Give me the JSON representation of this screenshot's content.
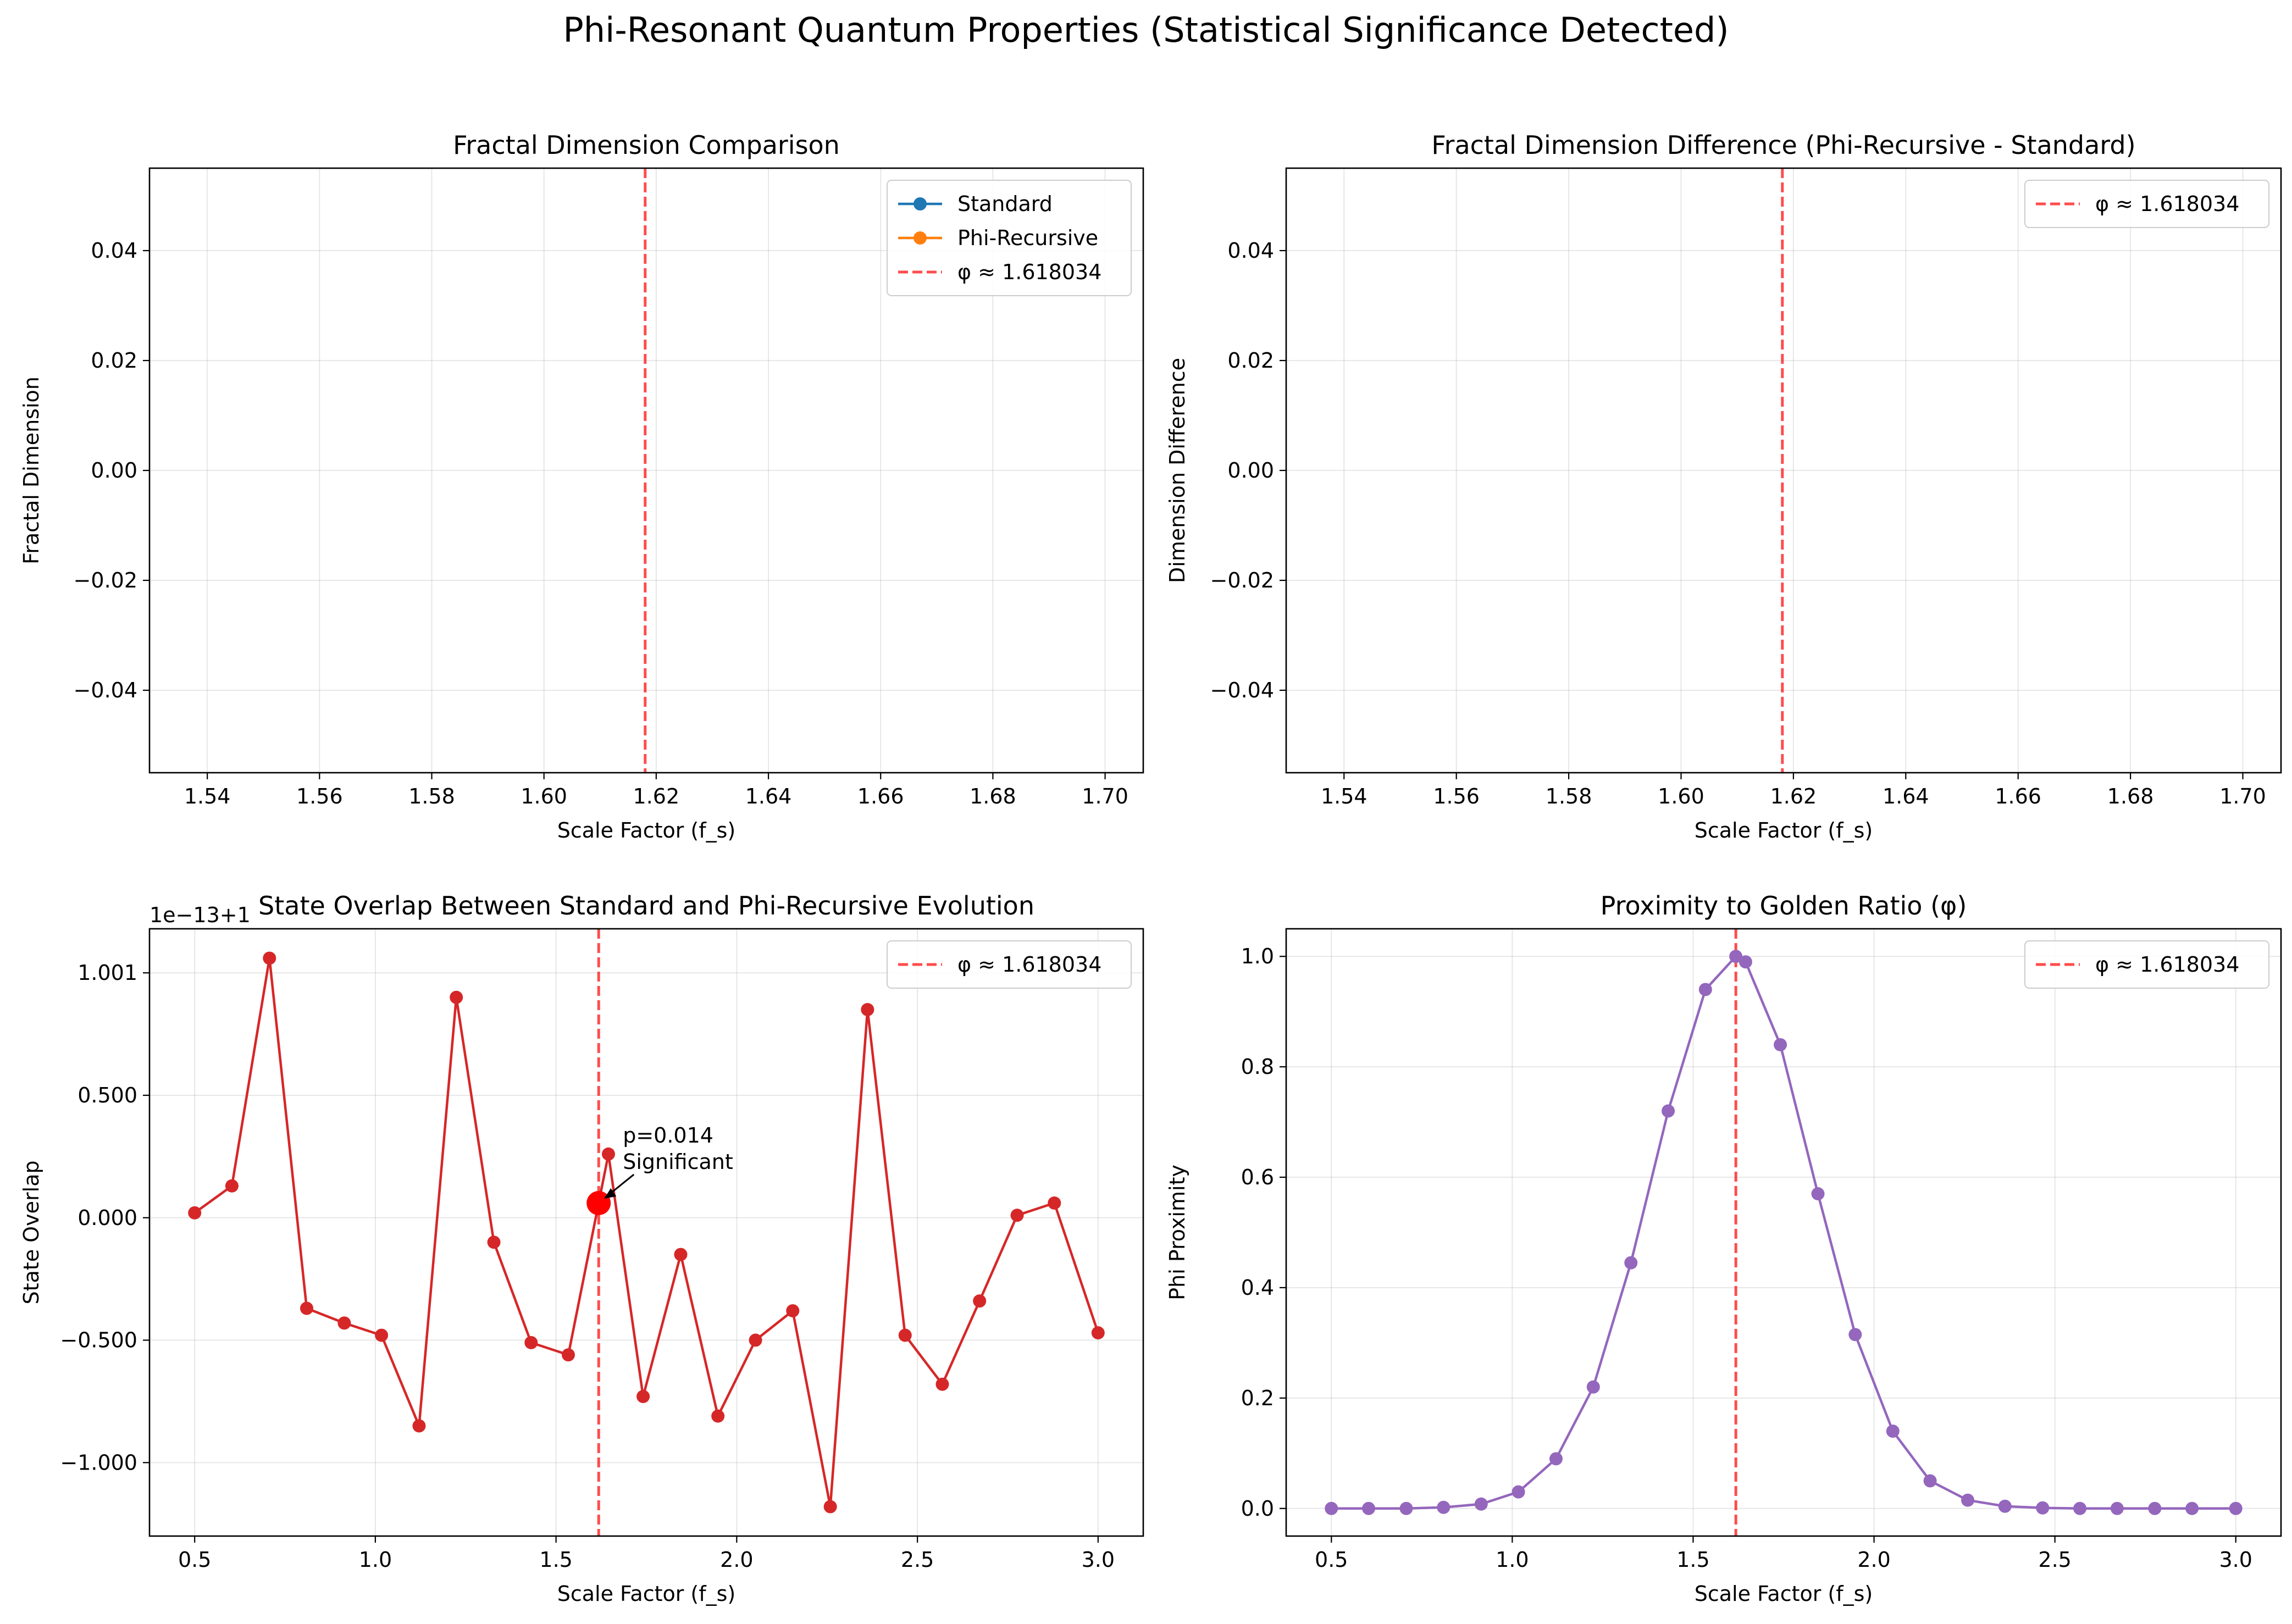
{
  "figure": {
    "suptitle": "Phi-Resonant Quantum Properties (Statistical Significance Detected)"
  },
  "colors": {
    "standard": "#1f77b4",
    "phi_recursive": "#ff7f0e",
    "phi_line": "#ff0000",
    "overlap": "#d62728",
    "proximity": "#9467bd",
    "grid": "#b0b0b0"
  },
  "chart_data": [
    {
      "id": "fractal_dimension",
      "type": "line",
      "title": "Fractal Dimension Comparison",
      "xlabel": "Scale Factor (f_s)",
      "ylabel": "Fractal Dimension",
      "xlim": [
        1.5297,
        1.7068
      ],
      "ylim": [
        -0.055,
        0.055
      ],
      "xticks": [
        1.54,
        1.56,
        1.58,
        1.6,
        1.62,
        1.64,
        1.66,
        1.68,
        1.7
      ],
      "xtick_labels": [
        "1.54",
        "1.56",
        "1.58",
        "1.60",
        "1.62",
        "1.64",
        "1.66",
        "1.68",
        "1.70"
      ],
      "yticks": [
        -0.04,
        -0.02,
        0.0,
        0.02,
        0.04
      ],
      "ytick_labels": [
        "−0.04",
        "−0.02",
        "0.00",
        "0.02",
        "0.04"
      ],
      "grid": true,
      "legend_position": "top-right",
      "series": [
        {
          "name": "Standard",
          "x": [],
          "y": [],
          "color": "#1f77b4"
        },
        {
          "name": "Phi-Recursive",
          "x": [],
          "y": [],
          "color": "#ff7f0e"
        }
      ],
      "vline": {
        "x": 1.618034,
        "label": "φ ≈ 1.618034"
      }
    },
    {
      "id": "dimension_difference",
      "type": "line",
      "title": "Fractal Dimension Difference (Phi-Recursive - Standard)",
      "xlabel": "Scale Factor (f_s)",
      "ylabel": "Dimension Difference",
      "xlim": [
        1.5297,
        1.7068
      ],
      "ylim": [
        -0.055,
        0.055
      ],
      "xticks": [
        1.54,
        1.56,
        1.58,
        1.6,
        1.62,
        1.64,
        1.66,
        1.68,
        1.7
      ],
      "xtick_labels": [
        "1.54",
        "1.56",
        "1.58",
        "1.60",
        "1.62",
        "1.64",
        "1.66",
        "1.68",
        "1.70"
      ],
      "yticks": [
        -0.04,
        -0.02,
        0.0,
        0.02,
        0.04
      ],
      "ytick_labels": [
        "−0.04",
        "−0.02",
        "0.00",
        "0.02",
        "0.04"
      ],
      "grid": true,
      "legend_position": "top-right",
      "series": [],
      "vline": {
        "x": 1.618034,
        "label": "φ ≈ 1.618034"
      }
    },
    {
      "id": "state_overlap",
      "type": "line",
      "title": "State Overlap Between Standard and Phi-Recursive Evolution",
      "xlabel": "Scale Factor (f_s)",
      "ylabel": "State Overlap",
      "offset_text": "1e−13+1",
      "xlim": [
        0.375,
        3.125
      ],
      "ylim": [
        -1.3,
        1.18
      ],
      "xticks": [
        0.5,
        1.0,
        1.5,
        2.0,
        2.5,
        3.0
      ],
      "xtick_labels": [
        "0.5",
        "1.0",
        "1.5",
        "2.0",
        "2.5",
        "3.0"
      ],
      "yticks": [
        -1.0,
        -0.5,
        0.0,
        0.5,
        1.0
      ],
      "ytick_labels": [
        "−1.000",
        "−0.500",
        "0.000",
        "0.500",
        "1.001"
      ],
      "grid": true,
      "legend_position": "top-right",
      "series": [
        {
          "name": "",
          "color": "#d62728",
          "x": [
            0.5,
            0.603,
            0.707,
            0.81,
            0.914,
            1.017,
            1.121,
            1.224,
            1.328,
            1.431,
            1.534,
            1.618,
            1.645,
            1.741,
            1.845,
            1.948,
            2.052,
            2.155,
            2.259,
            2.362,
            2.466,
            2.569,
            2.672,
            2.776,
            2.879,
            3.0
          ],
          "y": [
            0.02,
            0.13,
            1.06,
            -0.37,
            -0.43,
            -0.48,
            -0.85,
            0.9,
            -0.1,
            -0.51,
            -0.56,
            0.06,
            0.26,
            -0.73,
            -0.15,
            -0.81,
            -0.5,
            -0.38,
            -1.18,
            0.85,
            -0.48,
            -0.68,
            -0.34,
            0.01,
            0.06,
            -0.47
          ]
        }
      ],
      "highlight": {
        "x": 1.618,
        "y": 0.06
      },
      "annotation": {
        "lines": [
          "p=0.014",
          "Significant"
        ],
        "x": 1.618,
        "y": 0.06
      },
      "vline": {
        "x": 1.618034,
        "label": "φ ≈ 1.618034"
      }
    },
    {
      "id": "phi_proximity",
      "type": "line",
      "title": "Proximity to Golden Ratio (φ)",
      "xlabel": "Scale Factor (f_s)",
      "ylabel": "Phi Proximity",
      "xlim": [
        0.375,
        3.125
      ],
      "ylim": [
        -0.05,
        1.05
      ],
      "xticks": [
        0.5,
        1.0,
        1.5,
        2.0,
        2.5,
        3.0
      ],
      "xtick_labels": [
        "0.5",
        "1.0",
        "1.5",
        "2.0",
        "2.5",
        "3.0"
      ],
      "yticks": [
        0.0,
        0.2,
        0.4,
        0.6,
        0.8,
        1.0
      ],
      "ytick_labels": [
        "0.0",
        "0.2",
        "0.4",
        "0.6",
        "0.8",
        "1.0"
      ],
      "grid": true,
      "legend_position": "top-right",
      "series": [
        {
          "name": "",
          "color": "#9467bd",
          "x": [
            0.5,
            0.603,
            0.707,
            0.81,
            0.914,
            1.017,
            1.121,
            1.224,
            1.328,
            1.431,
            1.534,
            1.618,
            1.645,
            1.741,
            1.845,
            1.948,
            2.052,
            2.155,
            2.259,
            2.362,
            2.466,
            2.569,
            2.672,
            2.776,
            2.879,
            3.0
          ],
          "y": [
            0.0,
            0.0,
            0.0,
            0.002,
            0.008,
            0.03,
            0.09,
            0.22,
            0.445,
            0.72,
            0.94,
            1.0,
            0.99,
            0.84,
            0.57,
            0.315,
            0.14,
            0.05,
            0.015,
            0.004,
            0.001,
            0.0,
            0.0,
            0.0,
            0.0,
            0.0
          ]
        }
      ],
      "vline": {
        "x": 1.618034,
        "label": "φ ≈ 1.618034"
      }
    }
  ]
}
